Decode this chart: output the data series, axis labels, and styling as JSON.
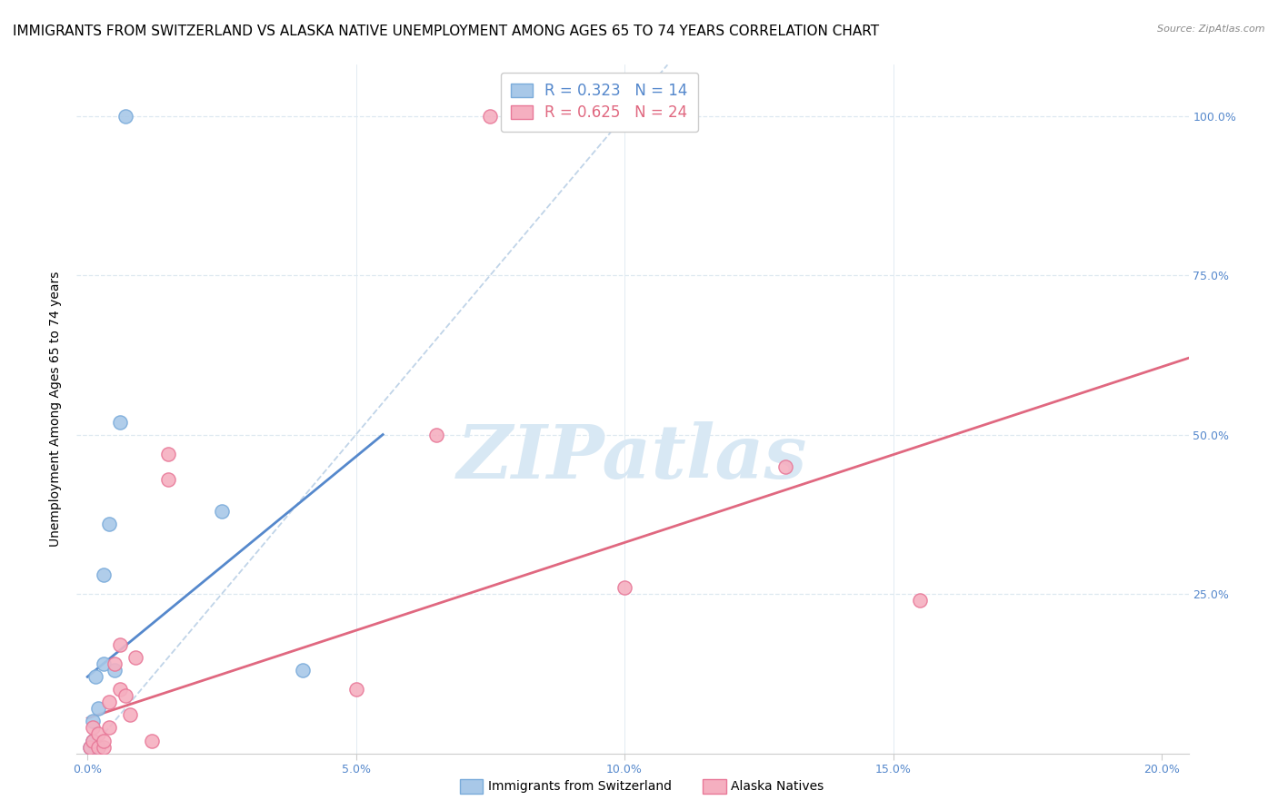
{
  "title": "IMMIGRANTS FROM SWITZERLAND VS ALASKA NATIVE UNEMPLOYMENT AMONG AGES 65 TO 74 YEARS CORRELATION CHART",
  "source": "Source: ZipAtlas.com",
  "xlabel_ticks": [
    "0.0%",
    "5.0%",
    "10.0%",
    "15.0%",
    "20.0%"
  ],
  "xlabel_vals": [
    0.0,
    0.05,
    0.1,
    0.15,
    0.2
  ],
  "ylabel_left": "Unemployment Among Ages 65 to 74 years",
  "ylim": [
    0.0,
    1.08
  ],
  "xlim": [
    -0.002,
    0.205
  ],
  "legend_blue_r": "0.323",
  "legend_blue_n": "14",
  "legend_pink_r": "0.625",
  "legend_pink_n": "24",
  "legend_label_blue": "Immigrants from Switzerland",
  "legend_label_pink": "Alaska Natives",
  "blue_scatter_x": [
    0.0005,
    0.001,
    0.001,
    0.0015,
    0.002,
    0.002,
    0.003,
    0.003,
    0.004,
    0.005,
    0.006,
    0.007,
    0.025,
    0.04
  ],
  "blue_scatter_y": [
    0.01,
    0.02,
    0.05,
    0.12,
    0.01,
    0.07,
    0.14,
    0.28,
    0.36,
    0.13,
    0.52,
    1.0,
    0.38,
    0.13
  ],
  "pink_scatter_x": [
    0.0005,
    0.001,
    0.001,
    0.002,
    0.002,
    0.003,
    0.003,
    0.004,
    0.004,
    0.005,
    0.006,
    0.006,
    0.007,
    0.008,
    0.009,
    0.012,
    0.015,
    0.015,
    0.05,
    0.065,
    0.075,
    0.1,
    0.13,
    0.155
  ],
  "pink_scatter_y": [
    0.01,
    0.02,
    0.04,
    0.01,
    0.03,
    0.01,
    0.02,
    0.04,
    0.08,
    0.14,
    0.1,
    0.17,
    0.09,
    0.06,
    0.15,
    0.02,
    0.43,
    0.47,
    0.1,
    0.5,
    1.0,
    0.26,
    0.45,
    0.24
  ],
  "blue_line_x0": 0.0,
  "blue_line_x1": 0.055,
  "blue_line_y0": 0.12,
  "blue_line_y1": 0.5,
  "pink_line_x0": 0.0,
  "pink_line_x1": 0.205,
  "pink_line_y0": 0.055,
  "pink_line_y1": 0.62,
  "diag_line_x0": 0.0,
  "diag_line_x1": 0.108,
  "diag_line_y0": 0.0,
  "diag_line_y1": 1.08,
  "blue_scatter_color": "#a8c8e8",
  "blue_scatter_edge": "#7aabda",
  "pink_scatter_color": "#f5afc0",
  "pink_scatter_edge": "#e87898",
  "blue_line_color": "#5588cc",
  "pink_line_color": "#e06880",
  "diag_line_color": "#c0d4e8",
  "watermark_text": "ZIPatlas",
  "watermark_color": "#d8e8f4",
  "grid_color": "#dde8f0",
  "bg_color": "#ffffff",
  "title_fontsize": 11,
  "ylabel_fontsize": 10,
  "tick_fontsize": 9,
  "right_tick_color": "#5588cc",
  "source_fontsize": 8,
  "legend_fontsize": 12
}
